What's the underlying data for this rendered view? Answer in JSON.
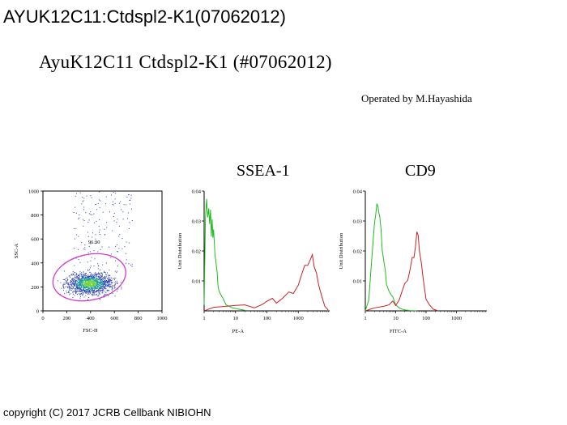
{
  "header": {
    "title": "AYUK12C11:Ctdspl2-K1(07062012)"
  },
  "report": {
    "title": "AyuK12C11  Ctdspl2-K1  (#07062012)",
    "operator": "Operated by M.Hayashida"
  },
  "footer": {
    "copyright": "copyright (C) 2017 JCRB Cellbank NIBIOHN"
  },
  "colors": {
    "density_low": "#2b3fb0",
    "density_mid": "#1a9a9a",
    "density_high": "#6fd23a",
    "gate": "#d03bd0",
    "control_histogram": "#22bb22",
    "stained_histogram": "#cc2222"
  },
  "chart_data": [
    {
      "type": "scatter",
      "xlabel": "FSC-H",
      "ylabel": "SSC-A",
      "xlim": [
        0,
        1000
      ],
      "ylim": [
        0,
        1000
      ],
      "xticks": [
        "0",
        "200",
        "400",
        "600",
        "800",
        "1000"
      ],
      "yticks": [
        "0",
        "200",
        "400",
        "600",
        "800",
        "1000"
      ],
      "gate": {
        "label": "96.30",
        "center": [
          390,
          280
        ],
        "rx": [
          310,
          300
        ],
        "ry": [
          190,
          190
        ]
      },
      "population": {
        "x_center": 390,
        "x_spread": 170,
        "y_center": 230,
        "y_spread": 80
      }
    },
    {
      "type": "line",
      "title": "SSEA-1",
      "xlabel": "PE-A",
      "ylabel": "Unit Distribution",
      "xscale": "log",
      "xlim": [
        1,
        10000
      ],
      "ylim": [
        0,
        0.04
      ],
      "xticks": [
        "1",
        "10",
        "100",
        "1000"
      ],
      "yticks": [
        "0.01",
        "0.02",
        "0.03",
        "0.04"
      ],
      "series": [
        {
          "color": "#22bb22",
          "x": [
            1,
            1.1,
            1.2,
            1.3,
            1.4,
            1.5,
            1.6,
            1.7,
            1.8,
            1.9,
            2.0,
            2.2,
            2.4,
            2.6,
            2.8,
            3.0,
            3.4,
            4.0,
            5,
            6,
            8,
            10,
            12,
            15,
            20
          ],
          "y": [
            0.002,
            0.031,
            0.037,
            0.03,
            0.035,
            0.029,
            0.033,
            0.026,
            0.031,
            0.024,
            0.026,
            0.02,
            0.016,
            0.012,
            0.009,
            0.007,
            0.005,
            0.003,
            0.002,
            0.0016,
            0.001,
            0.0008,
            0.0006,
            0.0004,
            0.0002
          ]
        },
        {
          "color": "#cc2222",
          "x": [
            1,
            2,
            5,
            10,
            20,
            40,
            70,
            100,
            150,
            200,
            300,
            500,
            700,
            1000,
            1300,
            1600,
            2000,
            2400,
            2800,
            3200,
            3800,
            4500,
            5500,
            7000,
            9000
          ],
          "y": [
            0.0,
            0.0012,
            0.0015,
            0.0018,
            0.002,
            0.0022,
            0.0025,
            0.0028,
            0.003,
            0.0034,
            0.004,
            0.0055,
            0.007,
            0.009,
            0.012,
            0.014,
            0.016,
            0.017,
            0.018,
            0.016,
            0.013,
            0.008,
            0.004,
            0.0015,
            0.0003
          ]
        }
      ]
    },
    {
      "type": "line",
      "title": "CD9",
      "xlabel": "FITC-A",
      "ylabel": "Unit Distribution",
      "xscale": "log",
      "xlim": [
        1,
        10000
      ],
      "ylim": [
        0,
        0.04
      ],
      "xticks": [
        "1",
        "10",
        "100",
        "1000"
      ],
      "yticks": [
        "0.01",
        "0.02",
        "0.03",
        "0.04"
      ],
      "series": [
        {
          "color": "#22bb22",
          "x": [
            1,
            1.3,
            1.5,
            1.8,
            2.0,
            2.2,
            2.4,
            2.6,
            2.8,
            3.0,
            3.3,
            3.6,
            4.0,
            4.5,
            5,
            6,
            7,
            8,
            10,
            13,
            16,
            20,
            30,
            50
          ],
          "y": [
            0.0,
            0.004,
            0.012,
            0.022,
            0.03,
            0.032,
            0.035,
            0.036,
            0.033,
            0.031,
            0.026,
            0.021,
            0.017,
            0.013,
            0.01,
            0.007,
            0.005,
            0.0035,
            0.002,
            0.001,
            0.0006,
            0.0003,
            0.0001,
            0.0
          ]
        },
        {
          "color": "#cc2222",
          "x": [
            1,
            2,
            4,
            6,
            8,
            10,
            13,
            16,
            20,
            25,
            30,
            35,
            40,
            45,
            50,
            55,
            60,
            70,
            80,
            100,
            130,
            170,
            250
          ],
          "y": [
            0.0,
            0.001,
            0.0015,
            0.002,
            0.0025,
            0.003,
            0.004,
            0.006,
            0.008,
            0.011,
            0.014,
            0.017,
            0.019,
            0.022,
            0.026,
            0.024,
            0.021,
            0.016,
            0.01,
            0.005,
            0.002,
            0.0006,
            0.0
          ]
        }
      ]
    }
  ]
}
